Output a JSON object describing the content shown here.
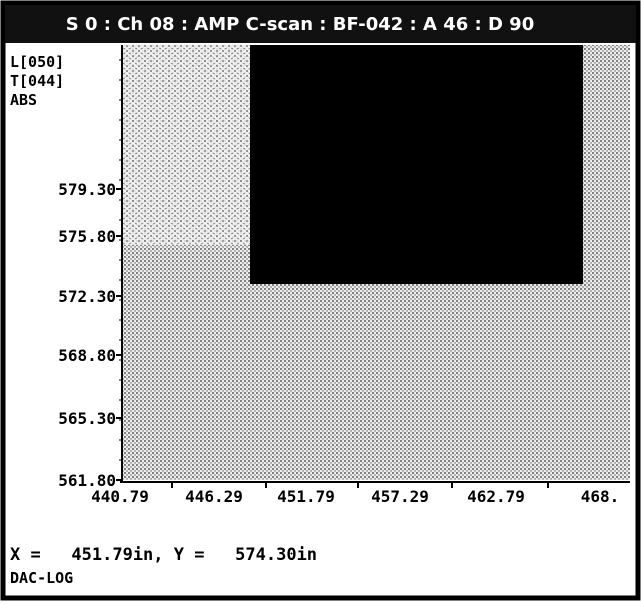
{
  "window": {
    "title": "S 0 : Ch 08 : AMP C-scan : BF-042 : A 46 : D 90",
    "labels": [
      "L[050]",
      "T[044]",
      "ABS"
    ],
    "y_axis": {
      "ticks": [
        "579.30",
        "575.80",
        "572.30",
        "568.80",
        "565.30",
        "561.80"
      ]
    },
    "x_axis": {
      "ticks": [
        "440.79",
        "446.29",
        "451.79",
        "457.29",
        "462.79",
        "468."
      ]
    },
    "status": {
      "position": "X =   451.79in, Y =   574.30in",
      "mode": "DAC-LOG"
    }
  }
}
